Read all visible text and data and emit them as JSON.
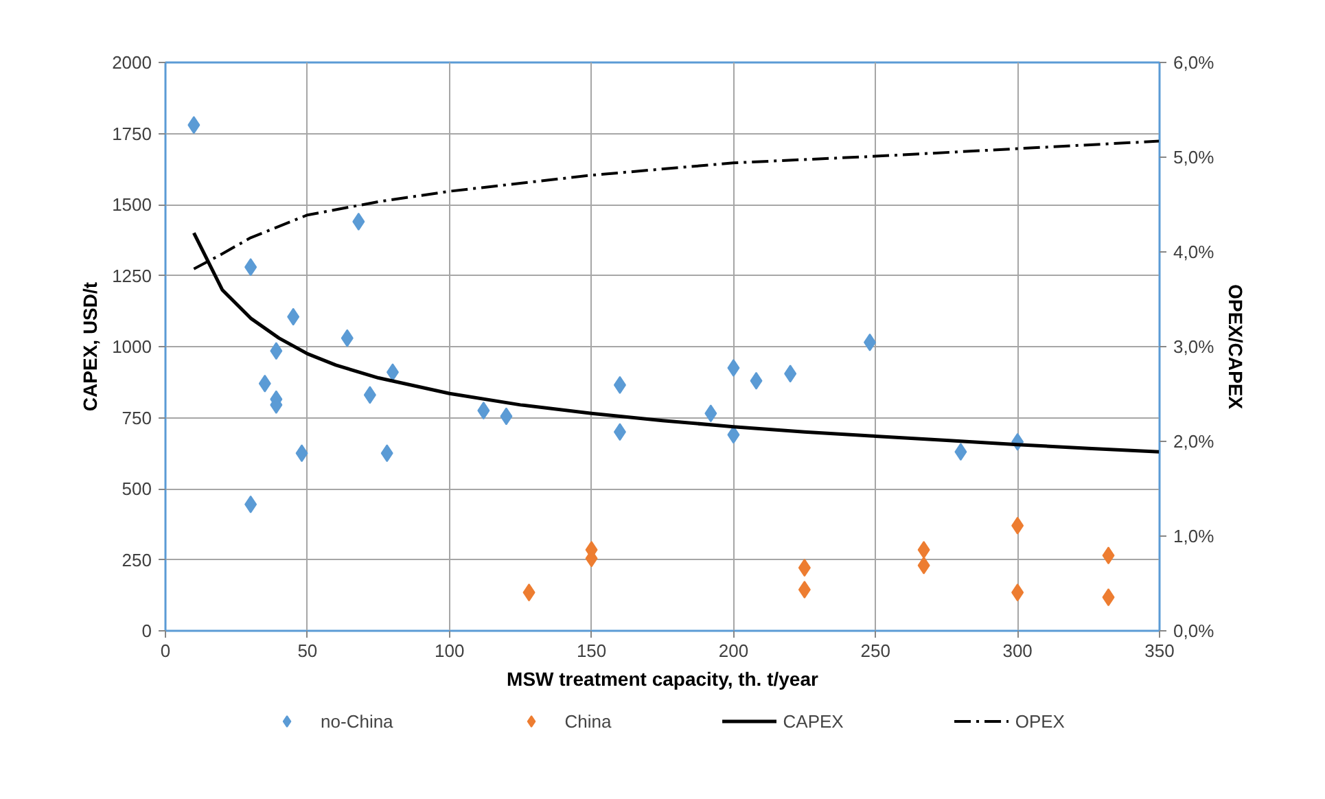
{
  "chart_data": {
    "type": "scatter",
    "xlabel": "MSW treatment capacity, th. t/year",
    "ylabel": "CAPEX, USD/t",
    "y2label": "OPEX/CAPEX",
    "xlim": [
      0,
      350
    ],
    "xticks": [
      0,
      50,
      100,
      150,
      200,
      250,
      300,
      350
    ],
    "ylim": [
      0,
      2000
    ],
    "yticks": [
      0,
      250,
      500,
      750,
      1000,
      1250,
      1500,
      1750,
      2000
    ],
    "y2lim": [
      0,
      6
    ],
    "y2ticks": [
      {
        "value": 0,
        "label": "0,0%"
      },
      {
        "value": 1,
        "label": "1,0%"
      },
      {
        "value": 2,
        "label": "2,0%"
      },
      {
        "value": 3,
        "label": "3,0%"
      },
      {
        "value": 4,
        "label": "4,0%"
      },
      {
        "value": 5,
        "label": "5,0%"
      },
      {
        "value": 6,
        "label": "6,0%"
      }
    ],
    "grid": true,
    "legend": "bottom",
    "series": [
      {
        "name": "no-China",
        "marker": "diamond",
        "color": "#5b9bd5",
        "x": [
          10,
          68,
          30,
          45,
          64,
          39,
          80,
          35,
          72,
          39,
          39,
          48,
          78,
          30,
          112,
          120,
          160,
          160,
          192,
          200,
          200,
          208,
          220,
          248,
          280,
          300
        ],
        "values": [
          1780,
          1440,
          1280,
          1105,
          1030,
          985,
          910,
          870,
          830,
          815,
          795,
          625,
          625,
          445,
          775,
          755,
          865,
          700,
          765,
          925,
          690,
          880,
          905,
          1015,
          630,
          665
        ]
      },
      {
        "name": "China",
        "marker": "diamond",
        "color": "#ed7d31",
        "x": [
          128,
          150,
          150,
          225,
          225,
          267,
          267,
          300,
          300,
          332,
          332
        ],
        "values": [
          135,
          285,
          255,
          222,
          145,
          285,
          230,
          370,
          135,
          265,
          118
        ]
      },
      {
        "name": "CAPEX",
        "type": "line",
        "color": "#000000",
        "line_style": "solid",
        "x": [
          10,
          20,
          30,
          40,
          50,
          60,
          75,
          100,
          125,
          150,
          175,
          200,
          225,
          250,
          275,
          300,
          325,
          350
        ],
        "values": [
          1400,
          1200,
          1100,
          1030,
          975,
          935,
          890,
          835,
          795,
          765,
          740,
          718,
          700,
          685,
          670,
          655,
          642,
          630
        ]
      },
      {
        "name": "OPEX",
        "type": "line",
        "color": "#000000",
        "line_style": "dashed",
        "axis": "y2",
        "x": [
          10,
          20,
          30,
          50,
          75,
          100,
          150,
          200,
          250,
          300,
          350
        ],
        "values": [
          3.82,
          3.98,
          4.15,
          4.39,
          4.53,
          4.64,
          4.81,
          4.94,
          5.01,
          5.09,
          5.17
        ]
      }
    ]
  }
}
